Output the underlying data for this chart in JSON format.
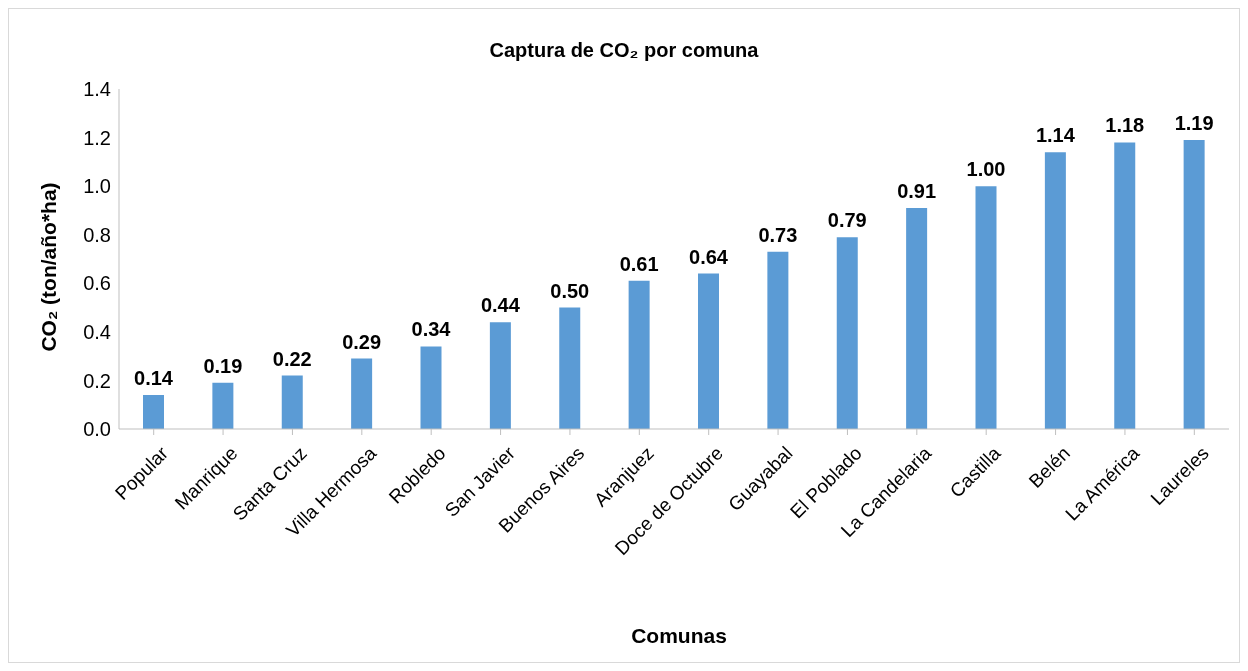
{
  "chart_data": {
    "type": "bar",
    "title": "Captura de CO₂ por comuna",
    "xlabel": "Comunas",
    "ylabel": "CO₂ (ton/año*ha)",
    "categories": [
      "Popular",
      "Manrique",
      "Santa Cruz",
      "Villa Hermosa",
      "Robledo",
      "San Javier",
      "Buenos Aires",
      "Aranjuez",
      "Doce de Octubre",
      "Guayabal",
      "El Poblado",
      "La Candelaria",
      "Castilla",
      "Belén",
      "La América",
      "Laureles"
    ],
    "values": [
      0.14,
      0.19,
      0.22,
      0.29,
      0.34,
      0.44,
      0.5,
      0.61,
      0.64,
      0.73,
      0.79,
      0.91,
      1.0,
      1.14,
      1.18,
      1.19
    ],
    "value_labels": [
      "0.14",
      "0.19",
      "0.22",
      "0.29",
      "0.34",
      "0.44",
      "0.50",
      "0.61",
      "0.64",
      "0.73",
      "0.79",
      "0.91",
      "1.00",
      "1.14",
      "1.18",
      "1.19"
    ],
    "color": "#5b9bd5",
    "ylim": [
      0,
      1.4
    ],
    "yticks": [
      {
        "value": 0,
        "label": "0.0"
      },
      {
        "value": 0.2,
        "label": "0.2"
      },
      {
        "value": 0.4,
        "label": "0.4"
      },
      {
        "value": 0.6,
        "label": "0.6"
      },
      {
        "value": 0.8,
        "label": "0.8"
      },
      {
        "value": 1,
        "label": "1.0"
      },
      {
        "value": 1.2,
        "label": "1.2"
      },
      {
        "value": 1.4,
        "label": "1.4"
      }
    ],
    "grid": false,
    "legend": false
  }
}
